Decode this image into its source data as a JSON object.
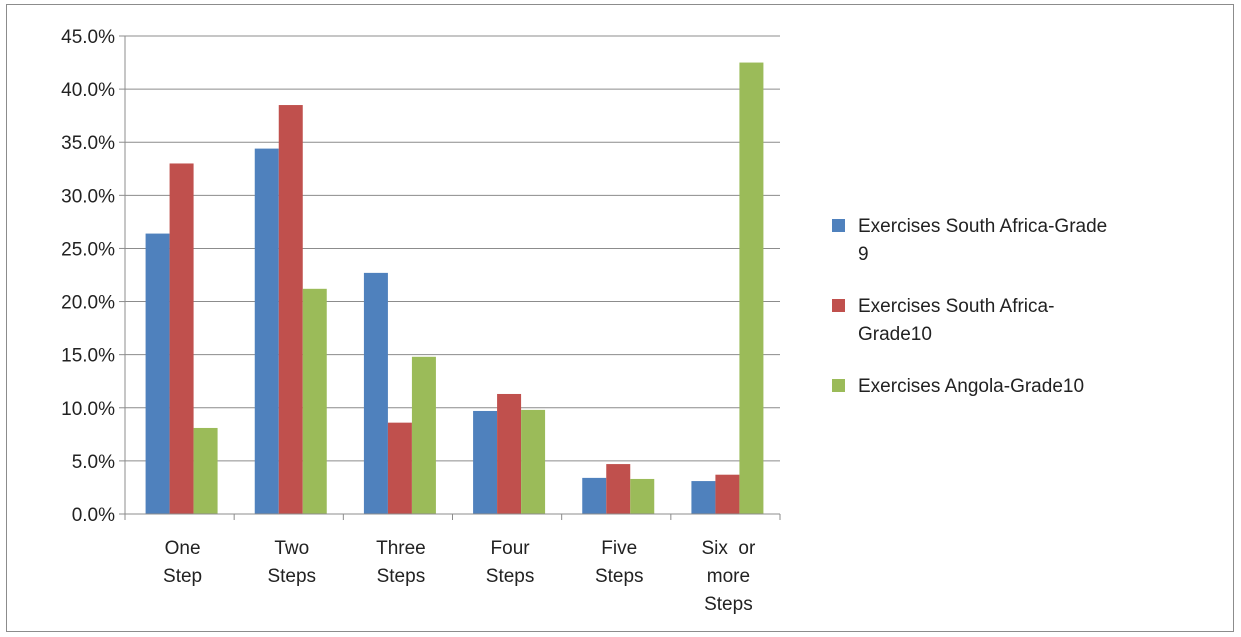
{
  "chart_data": {
    "type": "bar",
    "title": "",
    "xlabel": "",
    "ylabel": "",
    "ylim": [
      0,
      45
    ],
    "y_tick_step": 5,
    "y_tick_format": "percent_1dp",
    "grid": "horizontal",
    "legend_position": "right",
    "categories": [
      [
        "One",
        "Step"
      ],
      [
        "Two",
        "Steps"
      ],
      [
        "Three",
        "Steps"
      ],
      [
        "Four",
        "Steps"
      ],
      [
        "Five",
        "Steps"
      ],
      [
        "Six  or",
        "more",
        "Steps"
      ]
    ],
    "series": [
      {
        "name": [
          "Exercises South Africa-Grade",
          "9"
        ],
        "color": "#4f81bd",
        "values": [
          26.4,
          34.4,
          22.7,
          9.7,
          3.4,
          3.1
        ]
      },
      {
        "name": [
          "Exercises South Africa-",
          "Grade10"
        ],
        "color": "#c0504d",
        "values": [
          33.0,
          38.5,
          8.6,
          11.3,
          4.7,
          3.7
        ]
      },
      {
        "name": [
          "Exercises Angola-Grade10"
        ],
        "color": "#9bbb59",
        "values": [
          8.1,
          21.2,
          14.8,
          9.8,
          3.3,
          42.5
        ]
      }
    ]
  }
}
